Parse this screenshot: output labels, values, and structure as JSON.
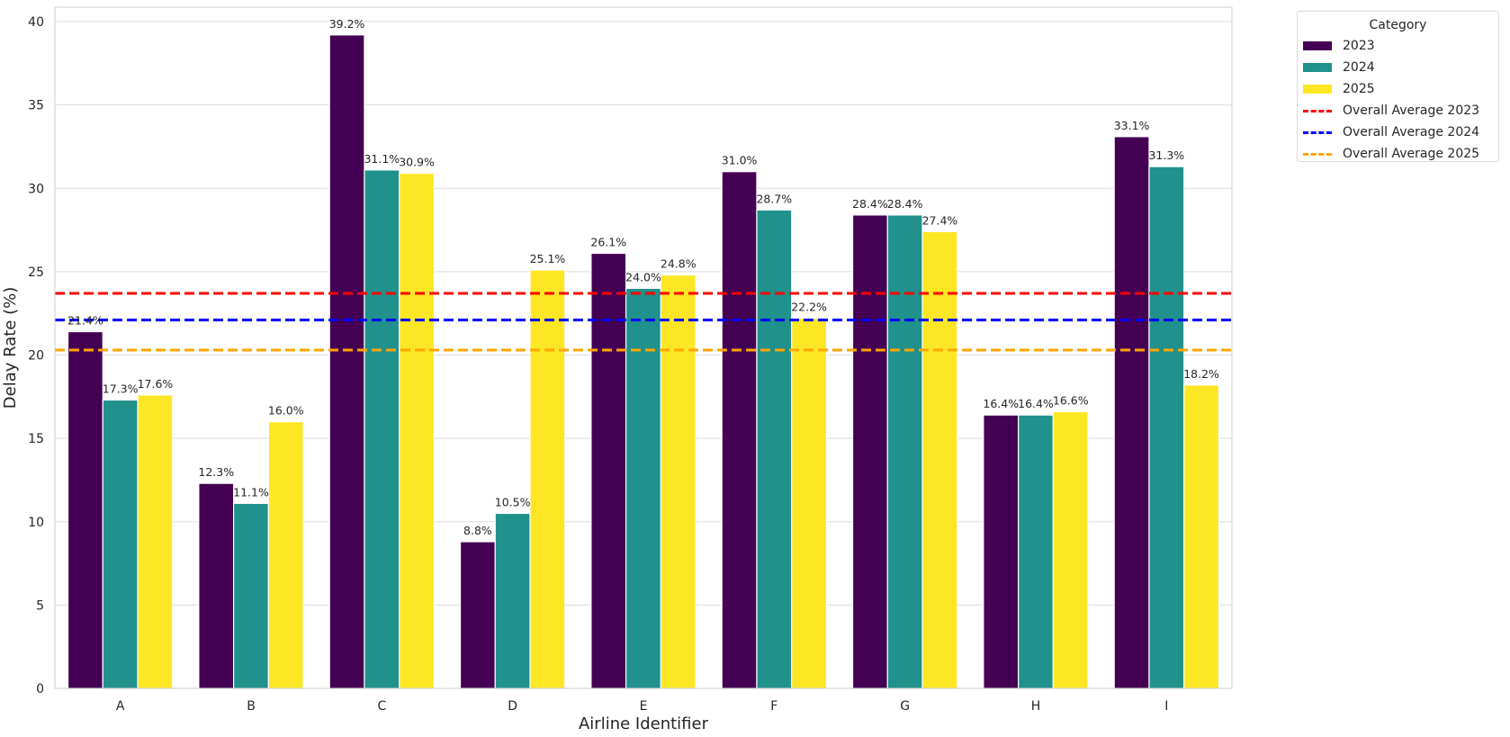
{
  "chart_data": {
    "type": "bar",
    "title": "",
    "xlabel": "Airline Identifier",
    "ylabel": "Delay Rate (%)",
    "ylim": [
      0,
      41
    ],
    "yticks": [
      0,
      5,
      10,
      15,
      20,
      25,
      30,
      35,
      40
    ],
    "grid": true,
    "categories": [
      "A",
      "B",
      "C",
      "D",
      "E",
      "F",
      "G",
      "H",
      "I"
    ],
    "series": [
      {
        "name": "2023",
        "color": "#440154",
        "values": [
          21.4,
          12.3,
          39.2,
          8.8,
          26.1,
          31.0,
          28.4,
          16.4,
          33.1
        ],
        "labels": [
          "21.4%",
          "12.3%",
          "39.2%",
          "8.8%",
          "26.1%",
          "31.0%",
          "28.4%",
          "16.4%",
          "33.1%"
        ]
      },
      {
        "name": "2024",
        "color": "#21918c",
        "values": [
          17.3,
          11.1,
          31.1,
          10.5,
          24.0,
          28.7,
          28.4,
          16.4,
          31.3
        ],
        "labels": [
          "17.3%",
          "11.1%",
          "31.1%",
          "10.5%",
          "24.0%",
          "28.7%",
          "28.4%",
          "16.4%",
          "31.3%"
        ]
      },
      {
        "name": "2025",
        "color": "#fde725",
        "values": [
          17.6,
          16.0,
          30.9,
          25.1,
          24.8,
          22.2,
          27.4,
          16.6,
          18.2
        ],
        "labels": [
          "17.6%",
          "16.0%",
          "30.9%",
          "25.1%",
          "24.8%",
          "22.2%",
          "27.4%",
          "16.6%",
          "18.2%"
        ]
      }
    ],
    "reference_lines": [
      {
        "name": "Overall Average 2023",
        "value": 23.7,
        "color": "#ff0000",
        "style": "dashed"
      },
      {
        "name": "Overall Average 2024",
        "value": 22.1,
        "color": "#0000ff",
        "style": "dashed"
      },
      {
        "name": "Overall Average 2025",
        "value": 20.3,
        "color": "#ffa500",
        "style": "dashed"
      }
    ],
    "legend": {
      "title": "Category",
      "placement": "outside-top-right",
      "entries": [
        "2023",
        "2024",
        "2025",
        "Overall Average 2023",
        "Overall Average 2024",
        "Overall Average 2025"
      ]
    }
  }
}
